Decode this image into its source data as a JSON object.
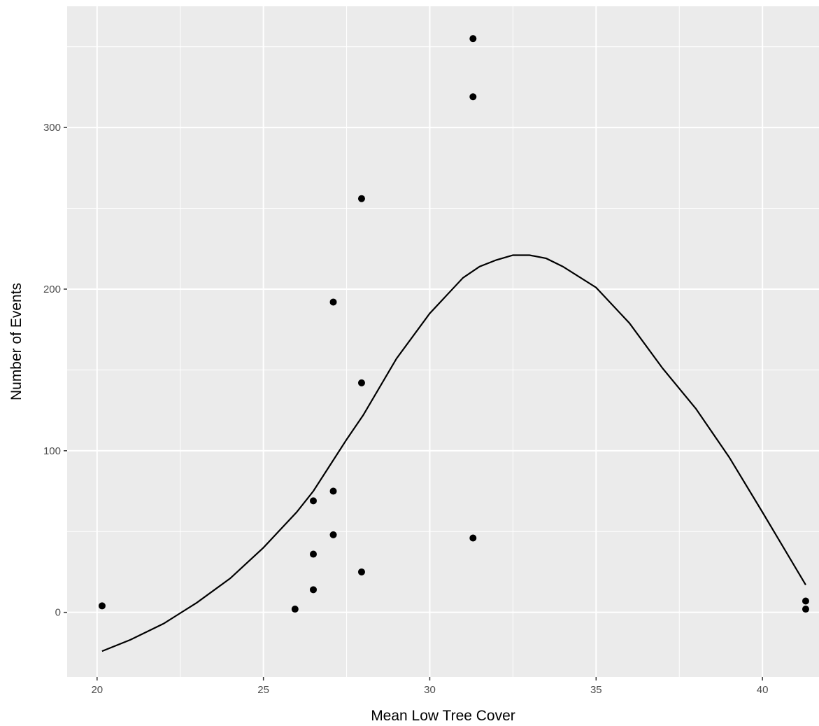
{
  "chart_data": {
    "type": "scatter",
    "title": "",
    "xlabel": "Mean Low Tree Cover",
    "ylabel": "Number of Events",
    "xlim": [
      19.1,
      41.7
    ],
    "ylim": [
      -40,
      375
    ],
    "x_ticks": [
      20,
      25,
      30,
      35,
      40
    ],
    "y_ticks": [
      0,
      100,
      200,
      300
    ],
    "x_tick_labels": [
      "20",
      "25",
      "30",
      "35",
      "40"
    ],
    "y_tick_labels": [
      "0",
      "100",
      "200",
      "300"
    ],
    "grid": true,
    "legend": "none",
    "points": [
      {
        "x": 20.15,
        "y": 4
      },
      {
        "x": 25.95,
        "y": 2
      },
      {
        "x": 26.5,
        "y": 14
      },
      {
        "x": 26.5,
        "y": 36
      },
      {
        "x": 26.5,
        "y": 69
      },
      {
        "x": 27.1,
        "y": 48
      },
      {
        "x": 27.1,
        "y": 75
      },
      {
        "x": 27.1,
        "y": 192
      },
      {
        "x": 27.95,
        "y": 25
      },
      {
        "x": 27.95,
        "y": 142
      },
      {
        "x": 27.95,
        "y": 256
      },
      {
        "x": 31.3,
        "y": 46
      },
      {
        "x": 31.3,
        "y": 319
      },
      {
        "x": 31.3,
        "y": 355
      },
      {
        "x": 41.3,
        "y": 2
      },
      {
        "x": 41.3,
        "y": 7
      }
    ],
    "fit_line": {
      "x": [
        20.15,
        21.0,
        22.0,
        23.0,
        24.0,
        25.0,
        26.0,
        26.5,
        27.0,
        27.5,
        28.0,
        29.0,
        30.0,
        31.0,
        31.5,
        32.0,
        32.5,
        33.0,
        33.5,
        34.0,
        35.0,
        36.0,
        37.0,
        38.0,
        39.0,
        40.0,
        41.3
      ],
      "y": [
        -24,
        -17,
        -7,
        6,
        21,
        40,
        62,
        75,
        91,
        107,
        122,
        157,
        185,
        207,
        214,
        218,
        221,
        221,
        219,
        214,
        201,
        179,
        151,
        126,
        96,
        62,
        17
      ]
    }
  }
}
